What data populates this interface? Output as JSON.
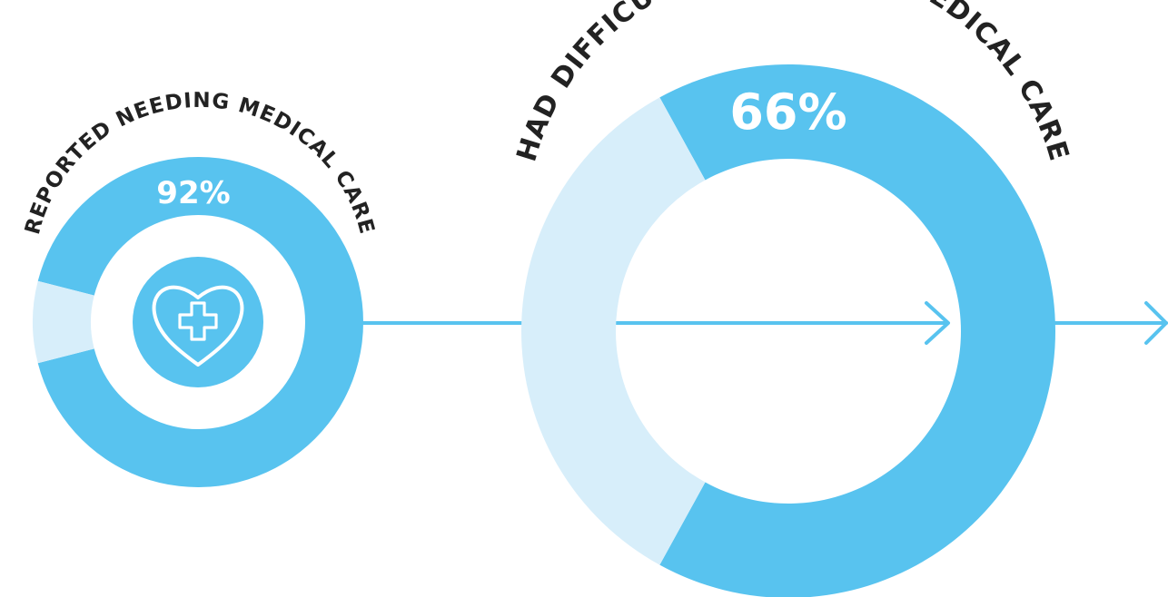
{
  "colors": {
    "primary": "#58C3EF",
    "light": "#D7EEFA",
    "connector": "#58C3EF",
    "label": "#222222",
    "value_text": "#ffffff",
    "background": "#ffffff"
  },
  "icon": {
    "name": "heart-medical-cross-icon"
  },
  "chart_data": [
    {
      "type": "donut",
      "label": "REPORTED NEEDING MEDICAL CARE",
      "value_label": "92%",
      "percent": 92,
      "remainder_percent": 8
    },
    {
      "type": "donut",
      "label": "HAD DIFFICULTY ACCESSING MEDICAL CARE",
      "value_label": "66%",
      "percent": 66,
      "remainder_percent": 34
    }
  ]
}
